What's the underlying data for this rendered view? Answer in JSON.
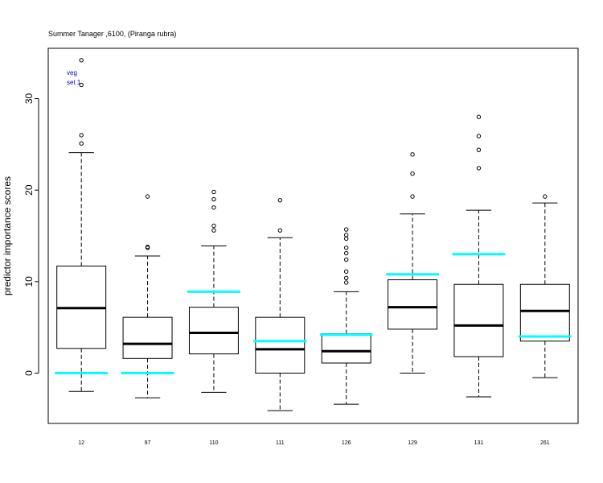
{
  "chart_data": {
    "type": "boxplot",
    "title": "Summer Tanager ,6100, (Piranga rubra)",
    "xlabel": "",
    "ylabel": "predictor importance scores",
    "ylim": [
      -5.5,
      35.5
    ],
    "yticks": [
      0,
      10,
      20,
      30
    ],
    "grid": false,
    "legend": {
      "placement": "top-left",
      "entries": [
        "veg",
        "set 1"
      ],
      "color": "#0000cc"
    },
    "categories": [
      "12",
      "97",
      "110",
      "111",
      "126",
      "129",
      "131",
      "261"
    ],
    "boxes": [
      {
        "whisker_low": -2.0,
        "q1": 2.7,
        "median": 7.1,
        "q3": 11.7,
        "whisker_high": 24.1,
        "outliers": [
          25.1,
          26.0,
          31.5,
          34.2
        ],
        "reference": 0.0
      },
      {
        "whisker_low": -2.7,
        "q1": 1.6,
        "median": 3.2,
        "q3": 6.1,
        "whisker_high": 12.8,
        "outliers": [
          13.7,
          13.8,
          19.3
        ],
        "reference": 0.0
      },
      {
        "whisker_low": -2.1,
        "q1": 2.1,
        "median": 4.4,
        "q3": 7.2,
        "whisker_high": 13.9,
        "outliers": [
          15.6,
          16.1,
          18.1,
          19.0,
          19.8
        ],
        "reference": 8.9
      },
      {
        "whisker_low": -4.1,
        "q1": 0.0,
        "median": 2.6,
        "q3": 6.1,
        "whisker_high": 14.8,
        "outliers": [
          15.6,
          18.9
        ],
        "reference": 3.5
      },
      {
        "whisker_low": -3.4,
        "q1": 1.1,
        "median": 2.4,
        "q3": 4.3,
        "whisker_high": 8.9,
        "outliers": [
          9.9,
          10.4,
          11.1,
          12.4,
          13.1,
          13.7,
          14.7,
          15.1,
          15.7
        ],
        "reference": 4.2
      },
      {
        "whisker_low": 0.0,
        "q1": 4.8,
        "median": 7.2,
        "q3": 10.2,
        "whisker_high": 17.4,
        "outliers": [
          19.3,
          21.8,
          23.9
        ],
        "reference": 10.8
      },
      {
        "whisker_low": -2.6,
        "q1": 1.8,
        "median": 5.2,
        "q3": 9.7,
        "whisker_high": 17.8,
        "outliers": [
          22.4,
          24.4,
          25.9,
          28.0
        ],
        "reference": 13.0
      },
      {
        "whisker_low": -0.5,
        "q1": 3.5,
        "median": 6.8,
        "q3": 9.7,
        "whisker_high": 18.6,
        "outliers": [
          19.3
        ],
        "reference": 4.0
      }
    ],
    "colors": {
      "box": "#000000",
      "median": "#000000",
      "reference": "#00ffff"
    }
  }
}
